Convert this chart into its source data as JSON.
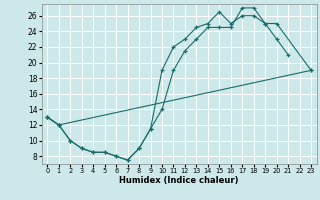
{
  "xlabel": "Humidex (Indice chaleur)",
  "xlim": [
    -0.5,
    23.5
  ],
  "ylim": [
    7,
    27.5
  ],
  "yticks": [
    8,
    10,
    12,
    14,
    16,
    18,
    20,
    22,
    24,
    26
  ],
  "xticks": [
    0,
    1,
    2,
    3,
    4,
    5,
    6,
    7,
    8,
    9,
    10,
    11,
    12,
    13,
    14,
    15,
    16,
    17,
    18,
    19,
    20,
    21,
    22,
    23
  ],
  "bg_color": "#cce8e8",
  "grid_color": "#ffffff",
  "line_color": "#1a6b6b",
  "line1_x": [
    0,
    1,
    2,
    3,
    4,
    5,
    6,
    7,
    8,
    9,
    10,
    11,
    12,
    13,
    14,
    15,
    16,
    17,
    18,
    19,
    20,
    21
  ],
  "line1_y": [
    13,
    12,
    10,
    9,
    8.5,
    8.5,
    8.0,
    7.5,
    9.0,
    11.5,
    14.0,
    19.0,
    21.5,
    23.0,
    24.5,
    24.5,
    24.5,
    27.0,
    27.0,
    25.0,
    23.0,
    21.0
  ],
  "line2_x": [
    0,
    1,
    2,
    3,
    4,
    5,
    6,
    7,
    8,
    9,
    10,
    11,
    12,
    13,
    14,
    15,
    16,
    17,
    18,
    19,
    20,
    23
  ],
  "line2_y": [
    13,
    12,
    10,
    9,
    8.5,
    8.5,
    8.0,
    7.5,
    9.0,
    11.5,
    19.0,
    22.0,
    23.0,
    24.5,
    25.0,
    26.5,
    25.0,
    26.0,
    26.0,
    25.0,
    25.0,
    19.0
  ],
  "line3_x": [
    0,
    1,
    23
  ],
  "line3_y": [
    13,
    12,
    19.0
  ]
}
